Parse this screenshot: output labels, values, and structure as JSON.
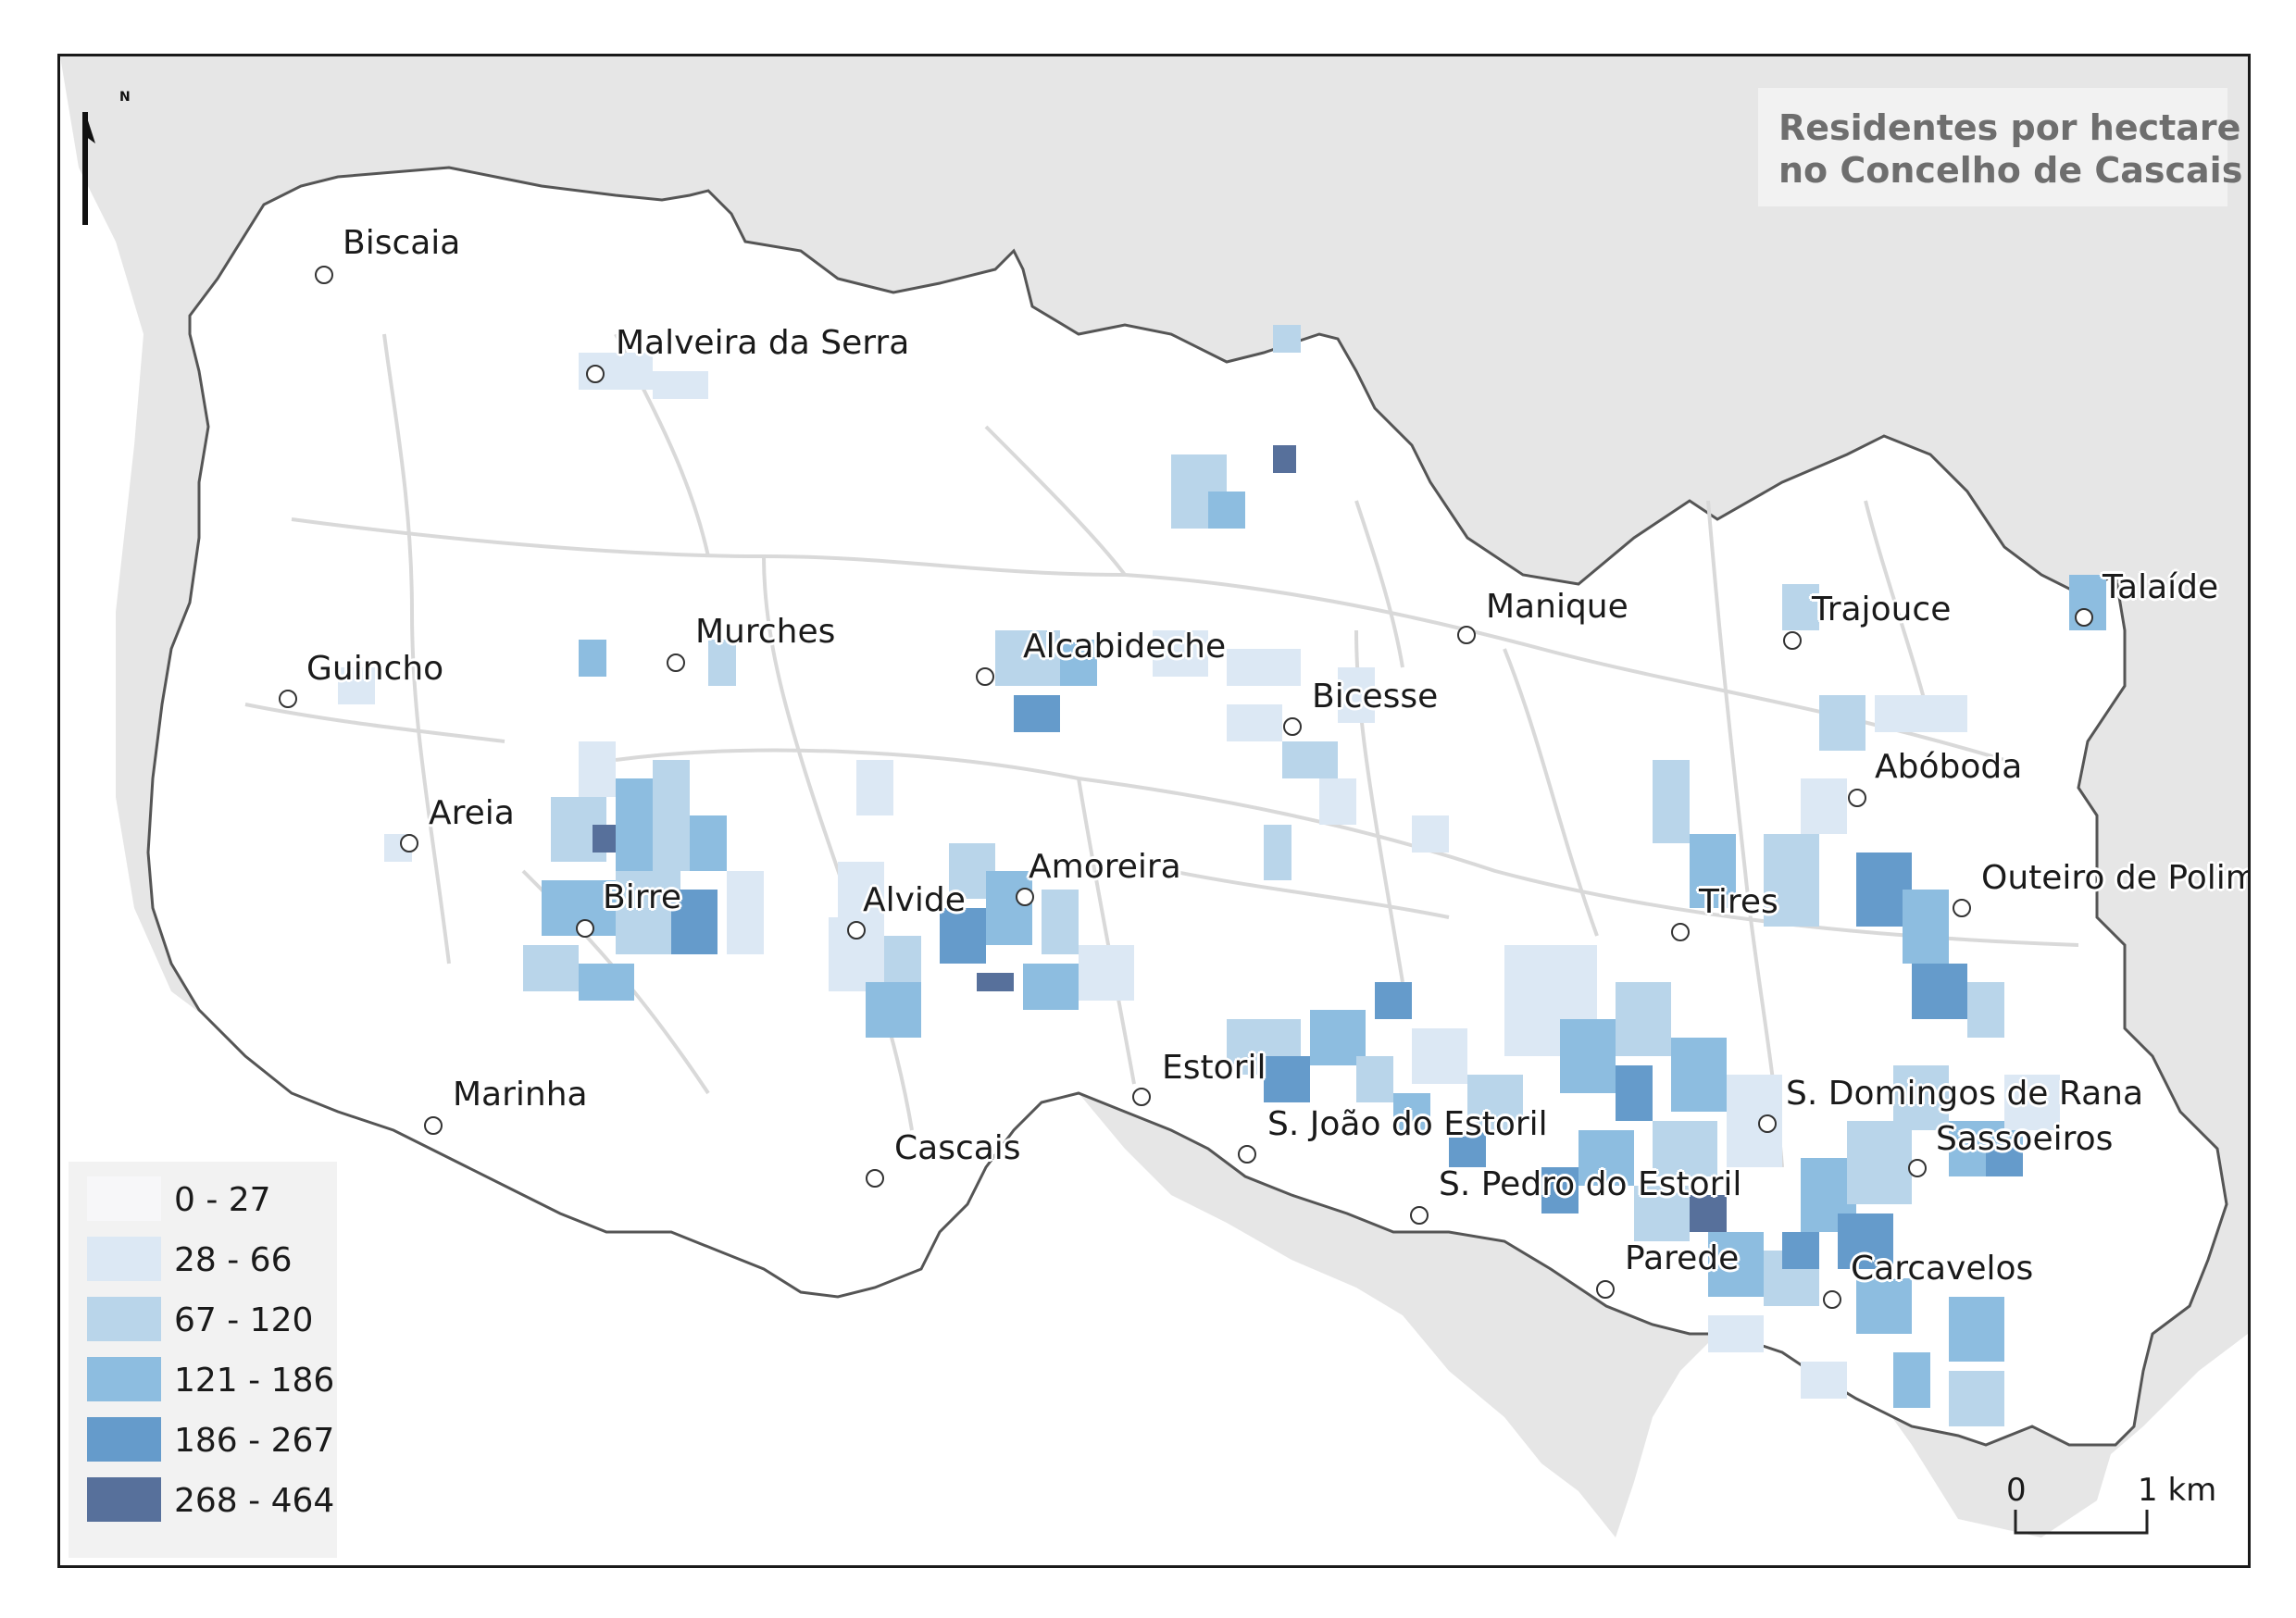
{
  "title": {
    "line1": "Residentes por hectare",
    "line2": "no Concelho de Cascais"
  },
  "legend": {
    "classes": [
      {
        "label": "0 - 27",
        "color": "#f7f7f9"
      },
      {
        "label": "28 - 66",
        "color": "#dce8f4"
      },
      {
        "label": "67 - 120",
        "color": "#b9d5ea"
      },
      {
        "label": "121 - 186",
        "color": "#8dbde0"
      },
      {
        "label": "186 - 267",
        "color": "#659bcb"
      },
      {
        "label": "268 - 464",
        "color": "#57709b"
      }
    ]
  },
  "north_arrow": {
    "label": "N"
  },
  "scale_bar": {
    "start_label": "0",
    "end_label": "1 km"
  },
  "places": [
    {
      "name": "Biscaia"
    },
    {
      "name": "Malveira da Serra"
    },
    {
      "name": "Murches"
    },
    {
      "name": "Guincho"
    },
    {
      "name": "Alcabideche"
    },
    {
      "name": "Manique"
    },
    {
      "name": "Trajouce"
    },
    {
      "name": "Talaíde"
    },
    {
      "name": "Bicesse"
    },
    {
      "name": "Areia"
    },
    {
      "name": "Abóboda"
    },
    {
      "name": "Amoreira"
    },
    {
      "name": "Outeiro de Polim"
    },
    {
      "name": "Birre"
    },
    {
      "name": "Alvide"
    },
    {
      "name": "Tires"
    },
    {
      "name": "Estoril"
    },
    {
      "name": "Marinha"
    },
    {
      "name": "S. Domingos de Rana"
    },
    {
      "name": "S. João do Estoril"
    },
    {
      "name": "Sassoeiros"
    },
    {
      "name": "Cascais"
    },
    {
      "name": "S. Pedro do Estoril"
    },
    {
      "name": "Parede"
    },
    {
      "name": "Carcavelos"
    }
  ],
  "colors": {
    "background_land": "#e6e6e6",
    "municipality_fill": "#ffffff",
    "boundary": "#555555",
    "roads": "#d9d9d9",
    "title_text": "#6e6e6e"
  }
}
